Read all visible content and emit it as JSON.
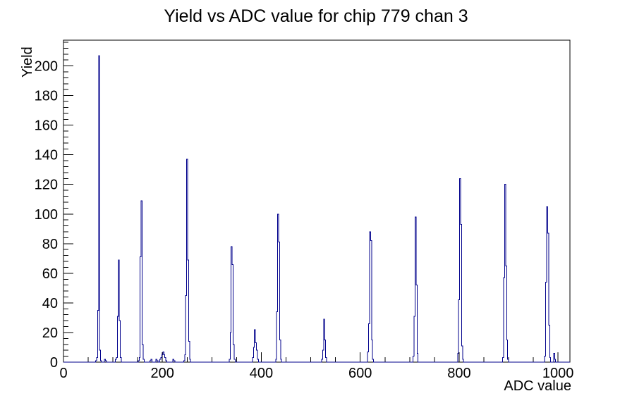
{
  "page": {
    "background": "#ffffff"
  },
  "chart_data": {
    "type": "bar",
    "title": "Yield vs ADC value for chip 779 chan 3",
    "xlabel": "ADC value",
    "ylabel": "Yield",
    "xlim": [
      0,
      1024
    ],
    "ylim": [
      0,
      217.4
    ],
    "x_major_ticks": [
      0,
      200,
      400,
      600,
      800,
      1000
    ],
    "x_minor_step": 50,
    "y_major_ticks": [
      0,
      20,
      40,
      60,
      80,
      100,
      120,
      140,
      160,
      180,
      200
    ],
    "y_minor_step": 4,
    "grid": false,
    "legend": "none",
    "line_color": "#00008b",
    "axis_color": "#000000",
    "bin_width": 2,
    "bins": [
      [
        66,
        1
      ],
      [
        68,
        3
      ],
      [
        70,
        35
      ],
      [
        72,
        207
      ],
      [
        74,
        8
      ],
      [
        76,
        1
      ],
      [
        84,
        2
      ],
      [
        86,
        1
      ],
      [
        106,
        2
      ],
      [
        108,
        3
      ],
      [
        110,
        31
      ],
      [
        112,
        69
      ],
      [
        114,
        28
      ],
      [
        116,
        3
      ],
      [
        152,
        1
      ],
      [
        154,
        3
      ],
      [
        156,
        71
      ],
      [
        158,
        109
      ],
      [
        160,
        12
      ],
      [
        162,
        2
      ],
      [
        176,
        1
      ],
      [
        178,
        2
      ],
      [
        188,
        2
      ],
      [
        190,
        1
      ],
      [
        196,
        2
      ],
      [
        198,
        3
      ],
      [
        200,
        5
      ],
      [
        202,
        7
      ],
      [
        204,
        5
      ],
      [
        206,
        3
      ],
      [
        208,
        1
      ],
      [
        222,
        2
      ],
      [
        224,
        1
      ],
      [
        244,
        1
      ],
      [
        246,
        5
      ],
      [
        248,
        45
      ],
      [
        250,
        137
      ],
      [
        252,
        69
      ],
      [
        254,
        14
      ],
      [
        256,
        2
      ],
      [
        336,
        2
      ],
      [
        338,
        20
      ],
      [
        340,
        78
      ],
      [
        342,
        66
      ],
      [
        344,
        12
      ],
      [
        346,
        2
      ],
      [
        383,
        3
      ],
      [
        385,
        10
      ],
      [
        387,
        22
      ],
      [
        389,
        13
      ],
      [
        391,
        8
      ],
      [
        393,
        2
      ],
      [
        430,
        2
      ],
      [
        432,
        34
      ],
      [
        434,
        100
      ],
      [
        436,
        81
      ],
      [
        438,
        15
      ],
      [
        440,
        2
      ],
      [
        523,
        2
      ],
      [
        525,
        8
      ],
      [
        527,
        29
      ],
      [
        529,
        15
      ],
      [
        531,
        3
      ],
      [
        616,
        7
      ],
      [
        618,
        26
      ],
      [
        620,
        88
      ],
      [
        622,
        82
      ],
      [
        624,
        15
      ],
      [
        626,
        2
      ],
      [
        708,
        4
      ],
      [
        710,
        31
      ],
      [
        712,
        98
      ],
      [
        714,
        52
      ],
      [
        716,
        6
      ],
      [
        798,
        6
      ],
      [
        800,
        42
      ],
      [
        802,
        124
      ],
      [
        804,
        93
      ],
      [
        806,
        11
      ],
      [
        808,
        2
      ],
      [
        889,
        3
      ],
      [
        891,
        57
      ],
      [
        893,
        120
      ],
      [
        895,
        65
      ],
      [
        897,
        15
      ],
      [
        899,
        2
      ],
      [
        974,
        4
      ],
      [
        976,
        54
      ],
      [
        978,
        105
      ],
      [
        980,
        87
      ],
      [
        982,
        25
      ],
      [
        984,
        3
      ],
      [
        992,
        6
      ],
      [
        994,
        2
      ]
    ],
    "peaks": [
      {
        "adc": 72,
        "yield": 207
      },
      {
        "adc": 112,
        "yield": 69
      },
      {
        "adc": 158,
        "yield": 109
      },
      {
        "adc": 202,
        "yield": 7
      },
      {
        "adc": 250,
        "yield": 137
      },
      {
        "adc": 340,
        "yield": 78
      },
      {
        "adc": 387,
        "yield": 22
      },
      {
        "adc": 434,
        "yield": 100
      },
      {
        "adc": 527,
        "yield": 29
      },
      {
        "adc": 620,
        "yield": 88
      },
      {
        "adc": 712,
        "yield": 98
      },
      {
        "adc": 802,
        "yield": 124
      },
      {
        "adc": 893,
        "yield": 120
      },
      {
        "adc": 978,
        "yield": 105
      }
    ]
  }
}
